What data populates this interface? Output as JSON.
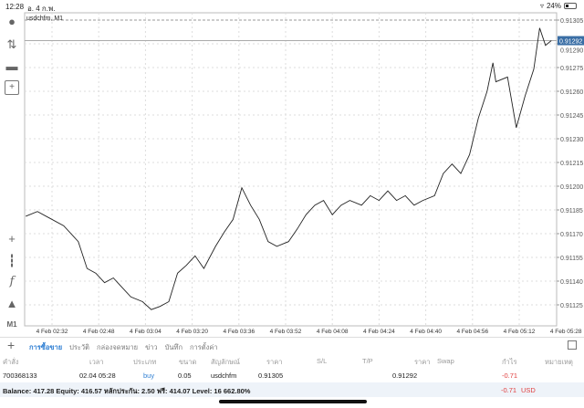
{
  "status": {
    "time": "12:28",
    "date": "อ. 4 ก.พ.",
    "battery": "24%",
    "battery_level": 24
  },
  "chart": {
    "title": "usdchfm, M1",
    "current_price": "0.91292",
    "ask_line": 0.91305,
    "colors": {
      "line": "#222222",
      "grid": "#dddddd",
      "price_badge": "#3a6ea5"
    }
  },
  "left_toolbar": {
    "top": [
      "account-icon",
      "trade-arrows-icon",
      "chat-icon",
      "new-document-icon"
    ],
    "bottom": [
      "crosshair-icon",
      "candlestick-icon",
      "function-icon",
      "shapes-icon"
    ],
    "timeframe": "M1"
  },
  "chart_data": {
    "type": "line",
    "symbol": "usdchfm",
    "timeframe": "M1",
    "ylim": [
      0.91118,
      0.9131
    ],
    "y_ticks": [
      "0.91305",
      "0.91290",
      "0.91275",
      "0.91260",
      "0.91245",
      "0.91230",
      "0.91215",
      "0.91200",
      "0.91185",
      "0.91170",
      "0.91155",
      "0.91140",
      "0.91125"
    ],
    "x_ticks": [
      "4 Feb 02:32",
      "4 Feb 02:48",
      "4 Feb 03:04",
      "4 Feb 03:20",
      "4 Feb 03:36",
      "4 Feb 03:52",
      "4 Feb 04:08",
      "4 Feb 04:24",
      "4 Feb 04:40",
      "4 Feb 04:56",
      "4 Feb 05:12",
      "4 Feb 05:28"
    ],
    "x": [
      "02:23",
      "02:27",
      "02:31",
      "02:36",
      "02:41",
      "02:44",
      "02:47",
      "02:50",
      "02:53",
      "02:56",
      "02:59",
      "03:03",
      "03:06",
      "03:09",
      "03:12",
      "03:15",
      "03:18",
      "03:21",
      "03:24",
      "03:28",
      "03:31",
      "03:34",
      "03:37",
      "03:40",
      "03:43",
      "03:46",
      "03:49",
      "03:53",
      "03:56",
      "03:59",
      "04:02",
      "04:05",
      "04:08",
      "04:11",
      "04:14",
      "04:18",
      "04:21",
      "04:24",
      "04:27",
      "04:30",
      "04:33",
      "04:36",
      "04:39",
      "04:43",
      "04:46",
      "04:49",
      "04:52",
      "04:55",
      "04:58",
      "05:01",
      "05:03",
      "05:04",
      "05:08",
      "05:11",
      "05:14",
      "05:17",
      "05:19",
      "05:21",
      "05:23"
    ],
    "values": [
      0.91181,
      0.91184,
      0.9118,
      0.91175,
      0.91165,
      0.91148,
      0.91145,
      0.91139,
      0.91142,
      0.91136,
      0.9113,
      0.91127,
      0.91122,
      0.91124,
      0.91127,
      0.91145,
      0.9115,
      0.91156,
      0.91148,
      0.91162,
      0.91171,
      0.91179,
      0.91199,
      0.91188,
      0.91179,
      0.91165,
      0.91162,
      0.91165,
      0.91173,
      0.91182,
      0.91188,
      0.91191,
      0.91182,
      0.91188,
      0.91191,
      0.91188,
      0.91194,
      0.91191,
      0.91197,
      0.91191,
      0.91194,
      0.91188,
      0.91191,
      0.91194,
      0.91208,
      0.91214,
      0.91208,
      0.9122,
      0.91243,
      0.9126,
      0.91278,
      0.91266,
      0.91269,
      0.91237,
      0.91257,
      0.91274,
      0.913,
      0.91289,
      0.91292
    ]
  },
  "bottom": {
    "tabs": [
      "การซื้อขาย",
      "ประวัติ",
      "กล่องจดหมาย",
      "ข่าว",
      "บันทึก",
      "การตั้งค่า"
    ],
    "columns": [
      "คำสั่ง",
      "เวลา",
      "ประเภท",
      "ขนาด",
      "สัญลักษณ์",
      "ราคา",
      "S/L",
      "T/P",
      "ราคา",
      "Swap",
      "กำไร",
      "หมายเหตุ"
    ],
    "order": {
      "ticket": "700368133",
      "time": "02.04 05:28",
      "type": "buy",
      "volume": "0.05",
      "symbol": "usdchfm",
      "open_price": "0.91305",
      "current_price": "0.91292",
      "profit": "-0.71"
    },
    "balance": "Balance: 417.28 Equity: 416.57 หลักประกัน: 2.50 ฟรี: 414.07 Level: 16 662.80%",
    "total_profit": "-0.71",
    "currency": "USD"
  }
}
